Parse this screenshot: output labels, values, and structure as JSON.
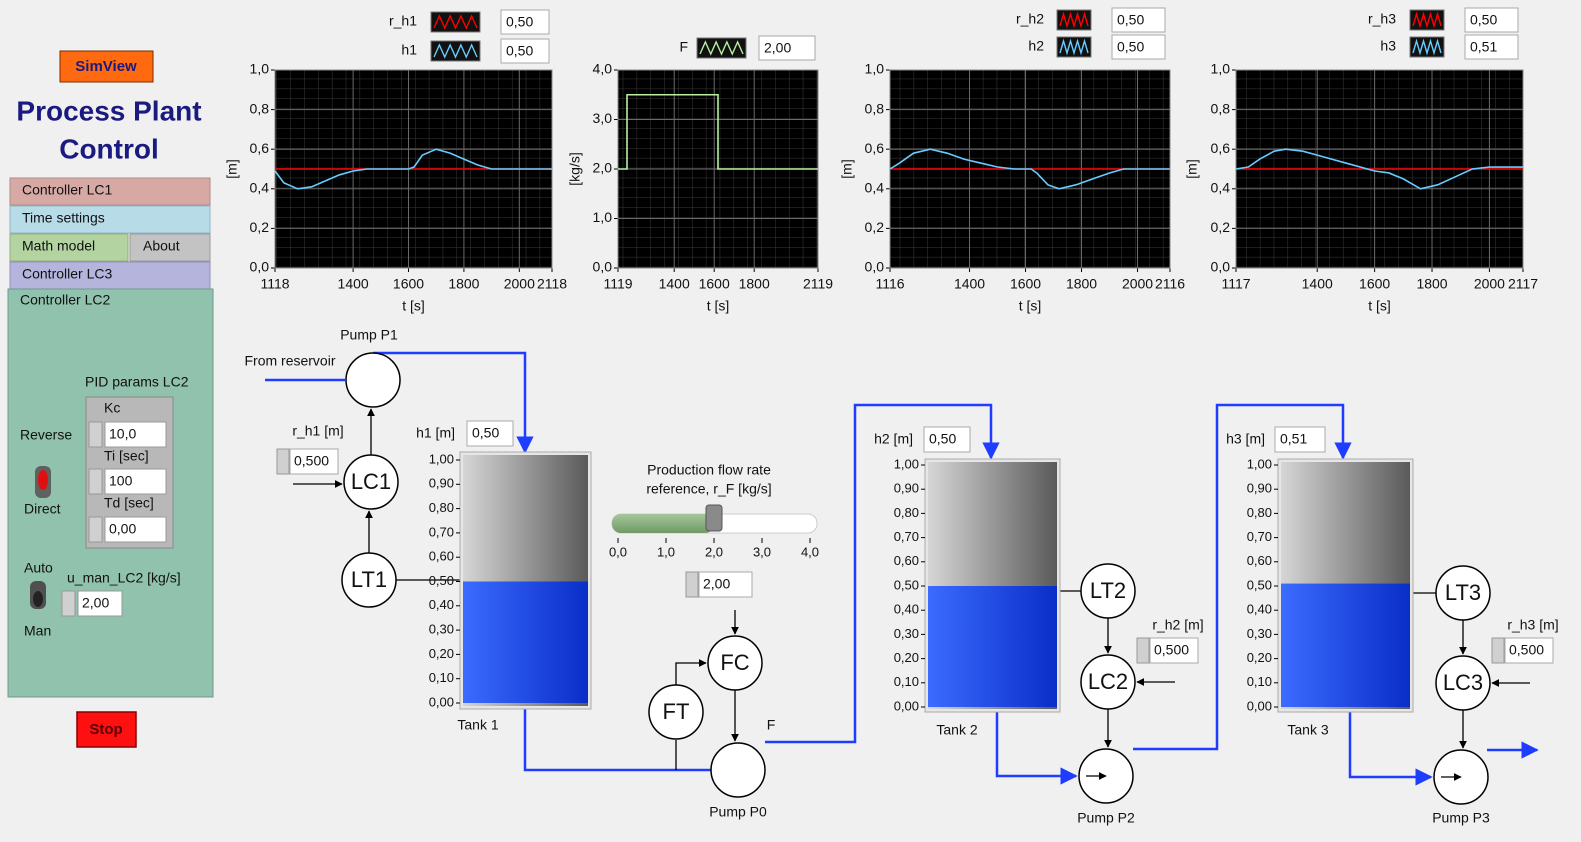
{
  "header": {
    "button": "SimView",
    "title_line1": "Process Plant",
    "title_line2": "Control"
  },
  "tabs": [
    "Controller LC1",
    "Time settings",
    "Math model",
    "About",
    "Controller LC3",
    "Controller LC2"
  ],
  "controller_panel": {
    "pid_title": "PID params LC2",
    "kc_label": "Kc",
    "kc": "10,0",
    "ti_label": "Ti [sec]",
    "ti": "100",
    "td_label": "Td [sec]",
    "td": "0,00",
    "reverse": "Reverse",
    "direct": "Direct",
    "auto": "Auto",
    "man": "Man",
    "u_man_label": "u_man_LC2 [kg/s]",
    "u_man": "2,00"
  },
  "stop_button": "Stop",
  "charts": [
    {
      "type": "line",
      "x_label": "t [s]",
      "y_label": "[m]",
      "x": [
        1118,
        1150,
        1200,
        1250,
        1300,
        1350,
        1400,
        1450,
        1500,
        1550,
        1600,
        1620,
        1650,
        1700,
        1750,
        1800,
        1850,
        1900,
        1950,
        2000,
        2050,
        2118
      ],
      "series": [
        {
          "name": "r_h1",
          "color": "#ff0000",
          "readout": "0,50",
          "values": [
            0.5,
            0.5,
            0.5,
            0.5,
            0.5,
            0.5,
            0.5,
            0.5,
            0.5,
            0.5,
            0.5,
            0.5,
            0.5,
            0.5,
            0.5,
            0.5,
            0.5,
            0.5,
            0.5,
            0.5,
            0.5,
            0.5
          ]
        },
        {
          "name": "h1",
          "color": "#66ccff",
          "readout": "0,50",
          "values": [
            0.49,
            0.43,
            0.4,
            0.41,
            0.44,
            0.47,
            0.49,
            0.5,
            0.5,
            0.5,
            0.5,
            0.51,
            0.57,
            0.6,
            0.58,
            0.55,
            0.52,
            0.5,
            0.5,
            0.5,
            0.5,
            0.5
          ]
        }
      ],
      "xlim": [
        1118,
        2118
      ],
      "xticks": [
        1118,
        1400,
        1600,
        1800,
        2000,
        2118
      ],
      "ylim": [
        0,
        1
      ],
      "yticks": [
        {
          "value": 0,
          "label": "0,0"
        },
        {
          "value": 0.2,
          "label": "0,2"
        },
        {
          "value": 0.4,
          "label": "0,4"
        },
        {
          "value": 0.6,
          "label": "0,6"
        },
        {
          "value": 0.8,
          "label": "0,8"
        },
        {
          "value": 1,
          "label": "1,0"
        }
      ],
      "grid": true
    },
    {
      "type": "line",
      "x_label": "t [s]",
      "y_label": "[kg/s]",
      "x": [
        1119,
        1164,
        1164,
        1619,
        1619,
        2119
      ],
      "series": [
        {
          "name": "F",
          "color": "#b6f0a0",
          "readout": "2,00",
          "values": [
            2,
            2,
            3.5,
            3.5,
            2,
            2
          ]
        }
      ],
      "xlim": [
        1119,
        2119
      ],
      "xticks": [
        1119,
        1400,
        1600,
        1800,
        2119
      ],
      "ylim": [
        0,
        4
      ],
      "yticks": [
        {
          "value": 0,
          "label": "0,0"
        },
        {
          "value": 1,
          "label": "1,0"
        },
        {
          "value": 2,
          "label": "2,0"
        },
        {
          "value": 3,
          "label": "3,0"
        },
        {
          "value": 4,
          "label": "4,0"
        }
      ],
      "grid": true
    },
    {
      "type": "line",
      "x_label": "t [s]",
      "y_label": "[m]",
      "x": [
        1116,
        1150,
        1200,
        1260,
        1320,
        1380,
        1440,
        1500,
        1560,
        1620,
        1640,
        1680,
        1720,
        1780,
        1840,
        1900,
        1950,
        2000,
        2050,
        2116
      ],
      "series": [
        {
          "name": "r_h2",
          "color": "#ff0000",
          "readout": "0,50",
          "values": [
            0.5,
            0.5,
            0.5,
            0.5,
            0.5,
            0.5,
            0.5,
            0.5,
            0.5,
            0.5,
            0.5,
            0.5,
            0.5,
            0.5,
            0.5,
            0.5,
            0.5,
            0.5,
            0.5,
            0.5
          ]
        },
        {
          "name": "h2",
          "color": "#66ccff",
          "readout": "0,50",
          "values": [
            0.5,
            0.53,
            0.58,
            0.6,
            0.58,
            0.55,
            0.53,
            0.51,
            0.5,
            0.5,
            0.48,
            0.42,
            0.4,
            0.42,
            0.45,
            0.48,
            0.5,
            0.5,
            0.5,
            0.5
          ]
        }
      ],
      "xlim": [
        1116,
        2116
      ],
      "xticks": [
        1116,
        1400,
        1600,
        1800,
        2000,
        2116
      ],
      "ylim": [
        0,
        1
      ],
      "yticks": [
        {
          "value": 0,
          "label": "0,0"
        },
        {
          "value": 0.2,
          "label": "0,2"
        },
        {
          "value": 0.4,
          "label": "0,4"
        },
        {
          "value": 0.6,
          "label": "0,6"
        },
        {
          "value": 0.8,
          "label": "0,8"
        },
        {
          "value": 1,
          "label": "1,0"
        }
      ],
      "grid": true
    },
    {
      "type": "line",
      "x_label": "t [s]",
      "y_label": "[m]",
      "x": [
        1117,
        1160,
        1200,
        1250,
        1290,
        1350,
        1400,
        1450,
        1500,
        1550,
        1600,
        1650,
        1700,
        1760,
        1820,
        1880,
        1940,
        2000,
        2060,
        2117
      ],
      "series": [
        {
          "name": "r_h3",
          "color": "#ff0000",
          "readout": "0,50",
          "values": [
            0.5,
            0.5,
            0.5,
            0.5,
            0.5,
            0.5,
            0.5,
            0.5,
            0.5,
            0.5,
            0.5,
            0.5,
            0.5,
            0.5,
            0.5,
            0.5,
            0.5,
            0.5,
            0.5,
            0.5
          ]
        },
        {
          "name": "h3",
          "color": "#66ccff",
          "readout": "0,51",
          "values": [
            0.5,
            0.51,
            0.55,
            0.59,
            0.6,
            0.59,
            0.57,
            0.55,
            0.53,
            0.51,
            0.49,
            0.48,
            0.45,
            0.4,
            0.42,
            0.46,
            0.5,
            0.51,
            0.51,
            0.51
          ]
        }
      ],
      "xlim": [
        1117,
        2117
      ],
      "xticks": [
        1117,
        1400,
        1600,
        1800,
        2000,
        2117
      ],
      "ylim": [
        0,
        1
      ],
      "yticks": [
        {
          "value": 0,
          "label": "0,0"
        },
        {
          "value": 0.2,
          "label": "0,2"
        },
        {
          "value": 0.4,
          "label": "0,4"
        },
        {
          "value": 0.6,
          "label": "0,6"
        },
        {
          "value": 0.8,
          "label": "0,8"
        },
        {
          "value": 1,
          "label": "1,0"
        }
      ],
      "grid": true
    }
  ],
  "diagram": {
    "from_reservoir": "From reservoir",
    "flow_label": "F",
    "nodes": [
      "Pump P1",
      "LC1",
      "LT1",
      "FC",
      "FT",
      "Pump P0",
      "LT2",
      "LC2",
      "Pump P2",
      "LT3",
      "LC3",
      "Pump P3"
    ],
    "tank_scale": {
      "lim": [
        0,
        1
      ],
      "ticks": [
        {
          "value": 0,
          "label": "0,00"
        },
        {
          "value": 0.1,
          "label": "0,10"
        },
        {
          "value": 0.2,
          "label": "0,20"
        },
        {
          "value": 0.3,
          "label": "0,30"
        },
        {
          "value": 0.4,
          "label": "0,40"
        },
        {
          "value": 0.5,
          "label": "0,50"
        },
        {
          "value": 0.6,
          "label": "0,60"
        },
        {
          "value": 0.7,
          "label": "0,70"
        },
        {
          "value": 0.8,
          "label": "0,80"
        },
        {
          "value": 0.9,
          "label": "0,90"
        },
        {
          "value": 1,
          "label": "1,00"
        }
      ]
    },
    "tanks": [
      {
        "name": "Tank 1",
        "level_label": "h1 [m]",
        "level": {
          "value": 0.5,
          "label": "0,50"
        },
        "setpoint_label": "r_h1 [m]",
        "setpoint": "0,500"
      },
      {
        "name": "Tank 2",
        "level_label": "h2 [m]",
        "level": {
          "value": 0.5,
          "label": "0,50"
        },
        "setpoint_label": "r_h2 [m]",
        "setpoint": "0,500"
      },
      {
        "name": "Tank 3",
        "level_label": "h3 [m]",
        "level": {
          "value": 0.51,
          "label": "0,51"
        },
        "setpoint_label": "r_h3 [m]",
        "setpoint": "0,500"
      }
    ],
    "slider": {
      "label_line1": "Production flow rate",
      "label_line2": "reference, r_F [kg/s]",
      "lim": [
        0,
        4
      ],
      "ticks": [
        {
          "value": 0,
          "label": "0,0"
        },
        {
          "value": 1,
          "label": "1,0"
        },
        {
          "value": 2,
          "label": "2,0"
        },
        {
          "value": 3,
          "label": "3,0"
        },
        {
          "value": 4,
          "label": "4,0"
        }
      ],
      "value": 2,
      "readout": "2,00"
    }
  }
}
